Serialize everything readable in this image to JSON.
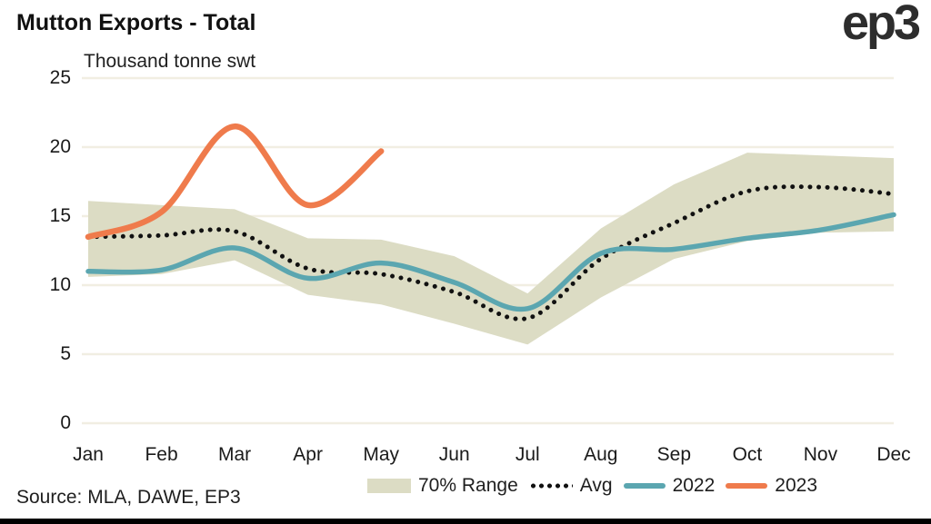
{
  "header": {
    "title": "Mutton Exports - Total",
    "subtitle": "Thousand tonne swt",
    "logo": "ep3"
  },
  "footer": {
    "source": "Source: MLA, DAWE, EP3"
  },
  "colors": {
    "background": "#ffffff",
    "gridline": "#f1eee2",
    "band": "#dcdcc4",
    "avg": "#111111",
    "y2022": "#5ba6b0",
    "y2023": "#ef7b4c",
    "text": "#1f1f1f",
    "bottom_bar": "#000000"
  },
  "chart_data": {
    "type": "line",
    "title": "Mutton Exports - Total",
    "ylabel": "Thousand tonne swt",
    "categories": [
      "Jan",
      "Feb",
      "Mar",
      "Apr",
      "May",
      "Jun",
      "Jul",
      "Aug",
      "Sep",
      "Oct",
      "Nov",
      "Dec"
    ],
    "ylim": [
      0,
      25
    ],
    "yticks": [
      0,
      5,
      10,
      15,
      20,
      25
    ],
    "grid": "horizontal",
    "legend_position": "bottom",
    "series": [
      {
        "name": "70% Range",
        "type": "band",
        "color": "#dcdcc4",
        "upper": [
          16.1,
          15.8,
          15.5,
          13.4,
          13.3,
          12.1,
          9.4,
          14.1,
          17.3,
          19.6,
          19.4,
          19.2
        ],
        "lower": [
          10.6,
          10.8,
          11.8,
          9.3,
          8.6,
          7.2,
          5.7,
          9.1,
          11.9,
          13.2,
          13.8,
          13.9
        ]
      },
      {
        "name": "Avg",
        "type": "dotted",
        "color": "#111111",
        "values": [
          13.5,
          13.6,
          13.9,
          11.2,
          10.8,
          9.5,
          7.6,
          11.9,
          14.5,
          16.8,
          17.1,
          16.6
        ]
      },
      {
        "name": "2022",
        "type": "line",
        "color": "#5ba6b0",
        "values": [
          11.0,
          11.1,
          12.7,
          10.5,
          11.6,
          10.2,
          8.3,
          12.3,
          12.6,
          13.4,
          14.0,
          15.1
        ]
      },
      {
        "name": "2023",
        "type": "line",
        "color": "#ef7b4c",
        "values": [
          13.5,
          15.3,
          21.5,
          15.8,
          19.7
        ]
      }
    ]
  }
}
